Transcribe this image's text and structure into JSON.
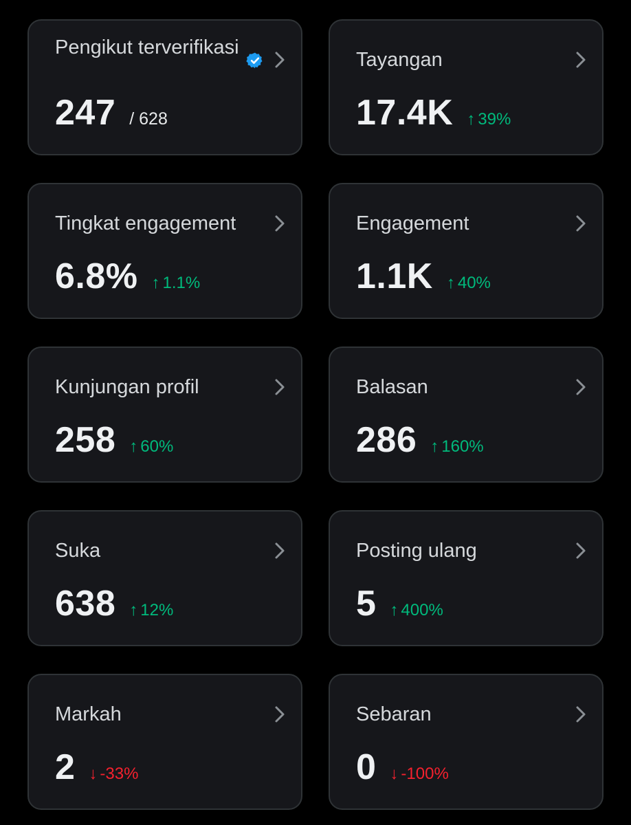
{
  "colors": {
    "background": "#000000",
    "card": "#16171b",
    "card_border": "#2f3336",
    "positive": "#00ba7c",
    "negative": "#f4212e",
    "verified_badge": "#1d9bf0"
  },
  "cards": [
    {
      "title": "Pengikut terverifikasi",
      "value": "247",
      "total": "/ 628",
      "verified_icon": "verified-badge-icon"
    },
    {
      "title": "Tayangan",
      "value": "17.4K",
      "arrow": "↑",
      "change": "39%",
      "trend": "up"
    },
    {
      "title": "Tingkat engagement",
      "value": "6.8%",
      "arrow": "↑",
      "change": "1.1%",
      "trend": "up"
    },
    {
      "title": "Engagement",
      "value": "1.1K",
      "arrow": "↑",
      "change": "40%",
      "trend": "up"
    },
    {
      "title": "Kunjungan profil",
      "value": "258",
      "arrow": "↑",
      "change": "60%",
      "trend": "up"
    },
    {
      "title": "Balasan",
      "value": "286",
      "arrow": "↑",
      "change": "160%",
      "trend": "up"
    },
    {
      "title": "Suka",
      "value": "638",
      "arrow": "↑",
      "change": "12%",
      "trend": "up"
    },
    {
      "title": "Posting ulang",
      "value": "5",
      "arrow": "↑",
      "change": "400%",
      "trend": "up"
    },
    {
      "title": "Markah",
      "value": "2",
      "arrow": "↓",
      "change": "-33%",
      "trend": "down"
    },
    {
      "title": "Sebaran",
      "value": "0",
      "arrow": "↓",
      "change": "-100%",
      "trend": "down"
    }
  ]
}
